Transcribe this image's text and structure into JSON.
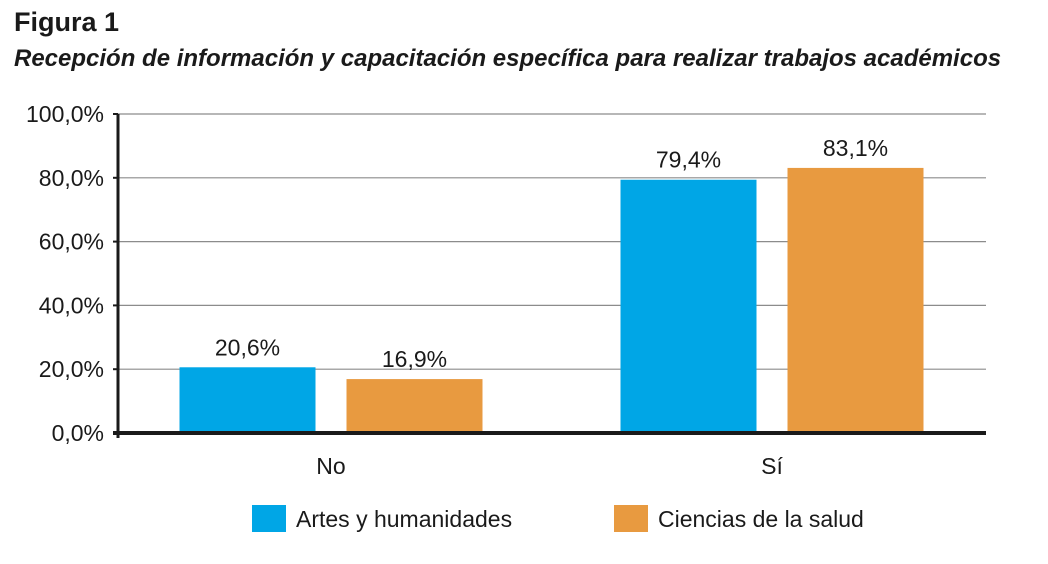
{
  "figure": {
    "label": "Figura 1",
    "title": "Recepción de información y capacitación específica para realizar trabajos académicos"
  },
  "colors": {
    "artes": "#00a6e6",
    "ciencias": "#e89a40",
    "axis": "#1a1a1a",
    "grid": "#8c8c8c"
  },
  "chart_data": {
    "type": "bar",
    "title": "Recepción de información y capacitación específica para realizar trabajos académicos",
    "xlabel": "",
    "ylabel": "",
    "categories": [
      "No",
      "Sí"
    ],
    "series": [
      {
        "name": "Artes y humanidades",
        "color": "#00a6e6",
        "values": [
          20.6,
          79.4
        ],
        "labels": [
          "20,6%",
          "79,4%"
        ]
      },
      {
        "name": "Ciencias de la salud",
        "color": "#e89a40",
        "values": [
          16.9,
          83.1
        ],
        "labels": [
          "16,9%",
          "83,1%"
        ]
      }
    ],
    "ylim": [
      0,
      100
    ],
    "yticks": [
      0,
      20,
      40,
      60,
      80,
      100
    ],
    "ytick_labels": [
      "0,0%",
      "20,0%",
      "40,0%",
      "60,0%",
      "80,0%",
      "100,0%"
    ],
    "grid": true,
    "legend_position": "bottom"
  }
}
